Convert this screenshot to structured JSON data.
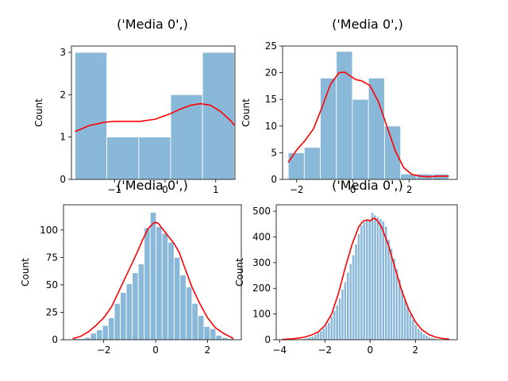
{
  "figure": {
    "colors": {
      "bar_fill": "#8ab8d9",
      "bar_edge": "#ffffff",
      "kde_line": "#ff0000",
      "axes": "#000000",
      "background": "#ffffff"
    }
  },
  "chart_data": [
    {
      "type": "bar",
      "title": "('Media 0',)",
      "xlabel": "",
      "ylabel": "Count",
      "xlim": [
        -1.85,
        1.38
      ],
      "ylim": [
        0,
        3.15
      ],
      "xticks": [
        -1,
        0,
        1
      ],
      "yticks": [
        0,
        1,
        2,
        3
      ],
      "bins": [
        {
          "x0": -1.78,
          "x1": -1.15,
          "count": 3
        },
        {
          "x0": -1.15,
          "x1": -0.52,
          "count": 1
        },
        {
          "x0": -0.52,
          "x1": 0.11,
          "count": 1
        },
        {
          "x0": 0.11,
          "x1": 0.74,
          "count": 2
        },
        {
          "x0": 0.74,
          "x1": 1.37,
          "count": 3
        }
      ],
      "kde": {
        "x": [
          -1.78,
          -1.5,
          -1.2,
          -1.0,
          -0.8,
          -0.5,
          -0.2,
          0.1,
          0.3,
          0.5,
          0.7,
          0.9,
          1.1,
          1.3,
          1.37
        ],
        "y": [
          1.13,
          1.27,
          1.35,
          1.37,
          1.37,
          1.37,
          1.42,
          1.55,
          1.66,
          1.75,
          1.79,
          1.75,
          1.6,
          1.38,
          1.28
        ]
      }
    },
    {
      "type": "bar",
      "title": "('Media 0',)",
      "xlabel": "",
      "ylabel": "Count",
      "xlim": [
        -2.5,
        3.7
      ],
      "ylim": [
        0,
        25
      ],
      "xticks": [
        -2,
        0,
        2
      ],
      "yticks": [
        0,
        5,
        10,
        15,
        20,
        25
      ],
      "bins": [
        {
          "x0": -2.3,
          "x1": -1.73,
          "count": 5
        },
        {
          "x0": -1.73,
          "x1": -1.16,
          "count": 6
        },
        {
          "x0": -1.16,
          "x1": -0.59,
          "count": 19
        },
        {
          "x0": -0.59,
          "x1": -0.02,
          "count": 24
        },
        {
          "x0": -0.02,
          "x1": 0.55,
          "count": 15
        },
        {
          "x0": 0.55,
          "x1": 1.12,
          "count": 19
        },
        {
          "x0": 1.12,
          "x1": 1.69,
          "count": 10
        },
        {
          "x0": 1.69,
          "x1": 2.26,
          "count": 1
        },
        {
          "x0": 2.26,
          "x1": 2.83,
          "count": 1
        },
        {
          "x0": 2.83,
          "x1": 3.4,
          "count": 1
        }
      ],
      "kde": {
        "x": [
          -2.3,
          -2.0,
          -1.7,
          -1.4,
          -1.1,
          -0.8,
          -0.5,
          -0.3,
          -0.1,
          0.1,
          0.3,
          0.6,
          0.9,
          1.2,
          1.5,
          1.8,
          2.1,
          2.4,
          2.7,
          3.0,
          3.4
        ],
        "y": [
          3.2,
          5.5,
          7.3,
          9.5,
          13.5,
          17.8,
          20.0,
          20.1,
          19.4,
          18.7,
          18.5,
          17.6,
          14.6,
          10.0,
          5.4,
          2.2,
          0.9,
          0.6,
          0.5,
          0.6,
          0.6
        ]
      }
    },
    {
      "type": "bar",
      "title": "('Media 0',)",
      "xlabel": "",
      "ylabel": "Count",
      "xlim": [
        -3.55,
        3.3
      ],
      "ylim": [
        0,
        123
      ],
      "xticks": [
        -2,
        0,
        2
      ],
      "yticks": [
        0,
        25,
        50,
        75,
        100
      ],
      "bins": [
        {
          "x0": -3.2,
          "x1": -2.97,
          "count": 1
        },
        {
          "x0": -2.97,
          "x1": -2.74,
          "count": 1
        },
        {
          "x0": -2.74,
          "x1": -2.51,
          "count": 2
        },
        {
          "x0": -2.51,
          "x1": -2.28,
          "count": 6
        },
        {
          "x0": -2.28,
          "x1": -2.05,
          "count": 9
        },
        {
          "x0": -2.05,
          "x1": -1.82,
          "count": 13
        },
        {
          "x0": -1.82,
          "x1": -1.59,
          "count": 20
        },
        {
          "x0": -1.59,
          "x1": -1.36,
          "count": 33
        },
        {
          "x0": -1.36,
          "x1": -1.13,
          "count": 43
        },
        {
          "x0": -1.13,
          "x1": -0.9,
          "count": 51
        },
        {
          "x0": -0.9,
          "x1": -0.67,
          "count": 61
        },
        {
          "x0": -0.67,
          "x1": -0.44,
          "count": 69
        },
        {
          "x0": -0.44,
          "x1": -0.21,
          "count": 102
        },
        {
          "x0": -0.21,
          "x1": 0.02,
          "count": 116
        },
        {
          "x0": 0.02,
          "x1": 0.25,
          "count": 103
        },
        {
          "x0": 0.25,
          "x1": 0.48,
          "count": 97
        },
        {
          "x0": 0.48,
          "x1": 0.71,
          "count": 89
        },
        {
          "x0": 0.71,
          "x1": 0.94,
          "count": 75
        },
        {
          "x0": 0.94,
          "x1": 1.17,
          "count": 59
        },
        {
          "x0": 1.17,
          "x1": 1.4,
          "count": 48
        },
        {
          "x0": 1.4,
          "x1": 1.63,
          "count": 33
        },
        {
          "x0": 1.63,
          "x1": 1.86,
          "count": 22
        },
        {
          "x0": 1.86,
          "x1": 2.09,
          "count": 12
        },
        {
          "x0": 2.09,
          "x1": 2.32,
          "count": 10
        },
        {
          "x0": 2.32,
          "x1": 2.55,
          "count": 4
        },
        {
          "x0": 2.55,
          "x1": 2.78,
          "count": 2
        },
        {
          "x0": 2.78,
          "x1": 3.01,
          "count": 1
        }
      ],
      "kde": {
        "x": [
          -3.2,
          -2.9,
          -2.6,
          -2.3,
          -2.0,
          -1.7,
          -1.4,
          -1.1,
          -0.8,
          -0.5,
          -0.3,
          -0.1,
          0.0,
          0.1,
          0.3,
          0.5,
          0.7,
          0.9,
          1.1,
          1.4,
          1.7,
          2.0,
          2.3,
          2.6,
          3.0
        ],
        "y": [
          1,
          3,
          7,
          13,
          20,
          30,
          45,
          60,
          75,
          91,
          101,
          106,
          107,
          106,
          100,
          94,
          88,
          80,
          67,
          48,
          33,
          20,
          11,
          6,
          1
        ]
      }
    },
    {
      "type": "bar",
      "title": "('Media 0',)",
      "xlabel": "",
      "ylabel": "Count",
      "xlim": [
        -4.15,
        3.85
      ],
      "ylim": [
        0,
        525
      ],
      "xticks": [
        -4,
        -2,
        0,
        2
      ],
      "yticks": [
        0,
        100,
        200,
        300,
        400,
        500
      ],
      "bins": [
        {
          "x0": -3.2,
          "x1": -3.08,
          "count": 2
        },
        {
          "x0": -3.08,
          "x1": -2.96,
          "count": 3
        },
        {
          "x0": -2.96,
          "x1": -2.84,
          "count": 5
        },
        {
          "x0": -2.84,
          "x1": -2.72,
          "count": 8
        },
        {
          "x0": -2.72,
          "x1": -2.6,
          "count": 11
        },
        {
          "x0": -2.6,
          "x1": -2.48,
          "count": 14
        },
        {
          "x0": -2.48,
          "x1": -2.36,
          "count": 20
        },
        {
          "x0": -2.36,
          "x1": -2.24,
          "count": 27
        },
        {
          "x0": -2.24,
          "x1": -2.12,
          "count": 34
        },
        {
          "x0": -2.12,
          "x1": -2.0,
          "count": 44
        },
        {
          "x0": -2.0,
          "x1": -1.88,
          "count": 56
        },
        {
          "x0": -1.88,
          "x1": -1.76,
          "count": 68
        },
        {
          "x0": -1.76,
          "x1": -1.64,
          "count": 92
        },
        {
          "x0": -1.64,
          "x1": -1.52,
          "count": 114
        },
        {
          "x0": -1.52,
          "x1": -1.4,
          "count": 135
        },
        {
          "x0": -1.4,
          "x1": -1.28,
          "count": 162
        },
        {
          "x0": -1.28,
          "x1": -1.16,
          "count": 197
        },
        {
          "x0": -1.16,
          "x1": -1.04,
          "count": 225
        },
        {
          "x0": -1.04,
          "x1": -0.92,
          "count": 262
        },
        {
          "x0": -0.92,
          "x1": -0.8,
          "count": 296
        },
        {
          "x0": -0.8,
          "x1": -0.68,
          "count": 330
        },
        {
          "x0": -0.68,
          "x1": -0.56,
          "count": 372
        },
        {
          "x0": -0.56,
          "x1": -0.44,
          "count": 412
        },
        {
          "x0": -0.44,
          "x1": -0.32,
          "count": 446
        },
        {
          "x0": -0.32,
          "x1": -0.2,
          "count": 458
        },
        {
          "x0": -0.2,
          "x1": -0.08,
          "count": 470
        },
        {
          "x0": -0.08,
          "x1": 0.04,
          "count": 462
        },
        {
          "x0": 0.04,
          "x1": 0.16,
          "count": 496
        },
        {
          "x0": 0.16,
          "x1": 0.28,
          "count": 485
        },
        {
          "x0": 0.28,
          "x1": 0.4,
          "count": 478
        },
        {
          "x0": 0.4,
          "x1": 0.52,
          "count": 470
        },
        {
          "x0": 0.52,
          "x1": 0.64,
          "count": 462
        },
        {
          "x0": 0.64,
          "x1": 0.76,
          "count": 442
        },
        {
          "x0": 0.76,
          "x1": 0.88,
          "count": 390
        },
        {
          "x0": 0.88,
          "x1": 1.0,
          "count": 355
        },
        {
          "x0": 1.0,
          "x1": 1.12,
          "count": 316
        },
        {
          "x0": 1.12,
          "x1": 1.24,
          "count": 275
        },
        {
          "x0": 1.24,
          "x1": 1.36,
          "count": 236
        },
        {
          "x0": 1.36,
          "x1": 1.48,
          "count": 196
        },
        {
          "x0": 1.48,
          "x1": 1.6,
          "count": 157
        },
        {
          "x0": 1.6,
          "x1": 1.72,
          "count": 130
        },
        {
          "x0": 1.72,
          "x1": 1.84,
          "count": 102
        },
        {
          "x0": 1.84,
          "x1": 1.96,
          "count": 80
        },
        {
          "x0": 1.96,
          "x1": 2.08,
          "count": 60
        },
        {
          "x0": 2.08,
          "x1": 2.2,
          "count": 44
        },
        {
          "x0": 2.2,
          "x1": 2.32,
          "count": 33
        },
        {
          "x0": 2.32,
          "x1": 2.44,
          "count": 24
        },
        {
          "x0": 2.44,
          "x1": 2.56,
          "count": 17
        },
        {
          "x0": 2.56,
          "x1": 2.68,
          "count": 12
        },
        {
          "x0": 2.68,
          "x1": 2.8,
          "count": 8
        },
        {
          "x0": 2.8,
          "x1": 2.92,
          "count": 5
        },
        {
          "x0": 2.92,
          "x1": 3.04,
          "count": 3
        },
        {
          "x0": 3.04,
          "x1": 3.16,
          "count": 2
        },
        {
          "x0": 3.16,
          "x1": 3.28,
          "count": 1
        }
      ],
      "kde": {
        "x": [
          -3.9,
          -3.5,
          -3.2,
          -2.9,
          -2.6,
          -2.3,
          -2.0,
          -1.7,
          -1.4,
          -1.1,
          -0.8,
          -0.5,
          -0.3,
          -0.1,
          0.0,
          0.1,
          0.2,
          0.3,
          0.5,
          0.8,
          1.1,
          1.4,
          1.7,
          2.0,
          2.3,
          2.6,
          2.9,
          3.2,
          3.5
        ],
        "y": [
          1,
          3,
          6,
          10,
          18,
          30,
          55,
          100,
          180,
          280,
          370,
          440,
          462,
          466,
          462,
          470,
          472,
          465,
          440,
          370,
          280,
          190,
          120,
          70,
          38,
          20,
          10,
          5,
          2
        ]
      }
    }
  ]
}
